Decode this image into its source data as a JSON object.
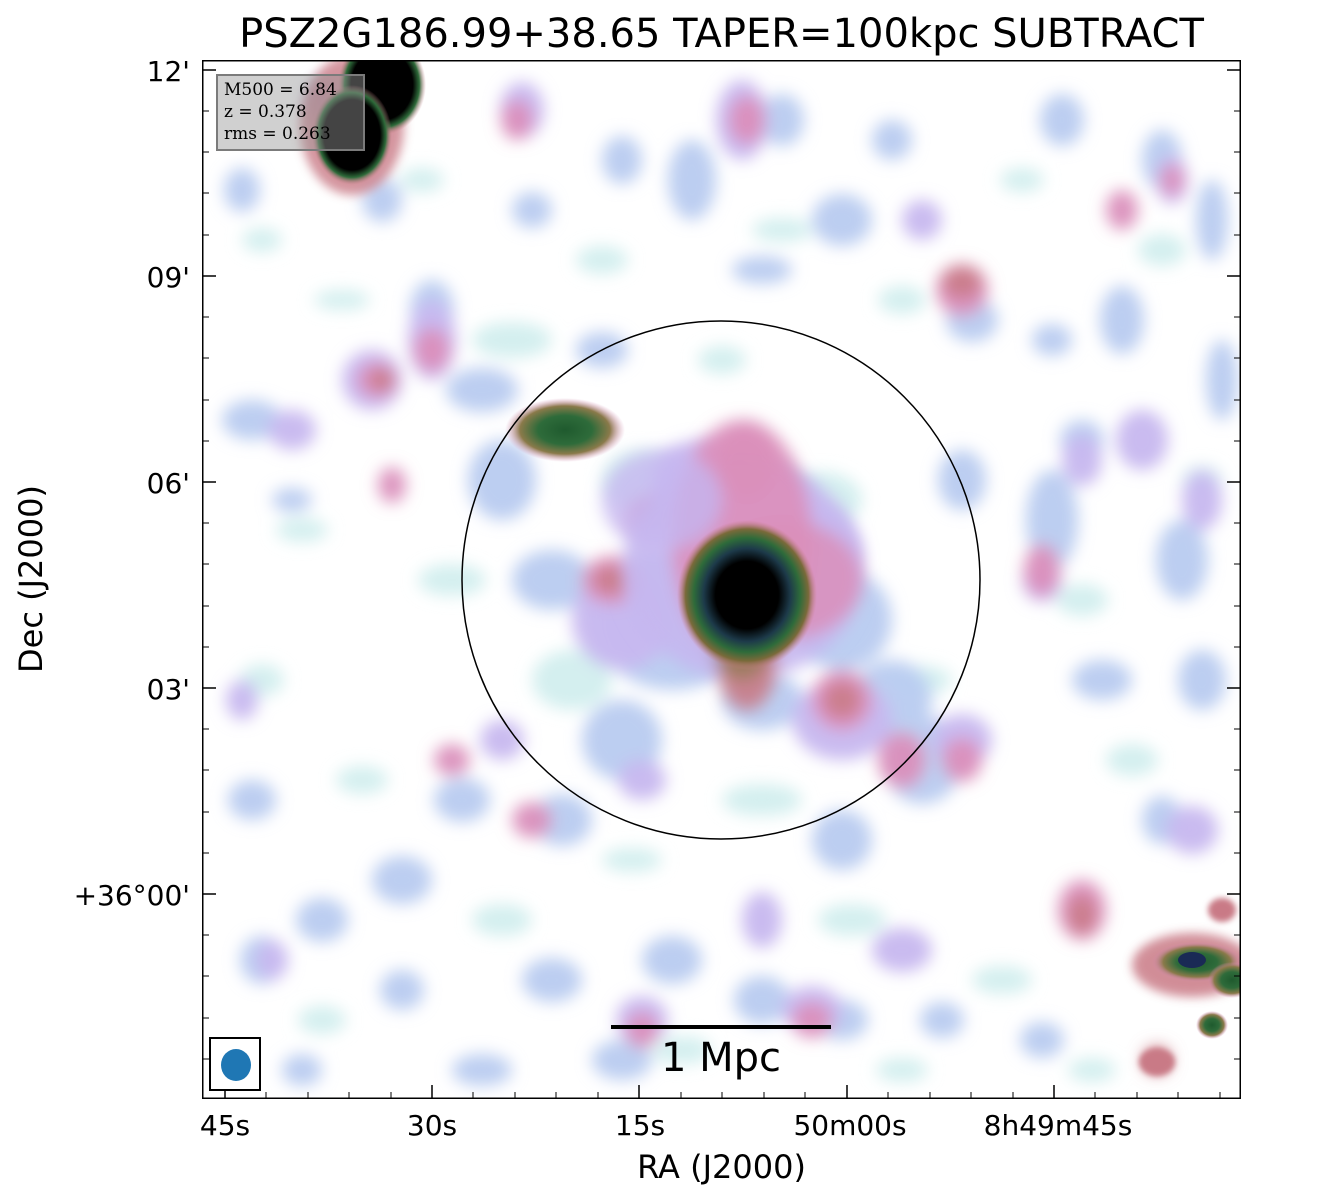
{
  "title": "PSZ2G186.99+38.65 TAPER=100kpc SUBTRACT",
  "axes": {
    "x_label": "RA (J2000)",
    "y_label": "Dec (J2000)",
    "x_ticks": [
      "45s",
      "30s",
      "15s",
      "50m00s",
      "8h49m45s"
    ],
    "y_ticks": [
      "12'",
      "09'",
      "06'",
      "03'",
      "+36°00'"
    ]
  },
  "info": {
    "m500": "M500 = 6.84",
    "z": "z = 0.378",
    "rms": "rms = 0.263"
  },
  "scale_bar": {
    "label": "1 Mpc"
  },
  "colors": {
    "faint_cyan": "#cdeeee",
    "light_blue": "#b7c9f0",
    "lavender": "#c5b7f0",
    "pink": "#d98ab8",
    "rose": "#c97a86",
    "green": "#2e6b3a",
    "core": "#000000",
    "beam": "#1f77b4"
  },
  "icons": {
    "beam": "beam-ellipse-icon"
  }
}
